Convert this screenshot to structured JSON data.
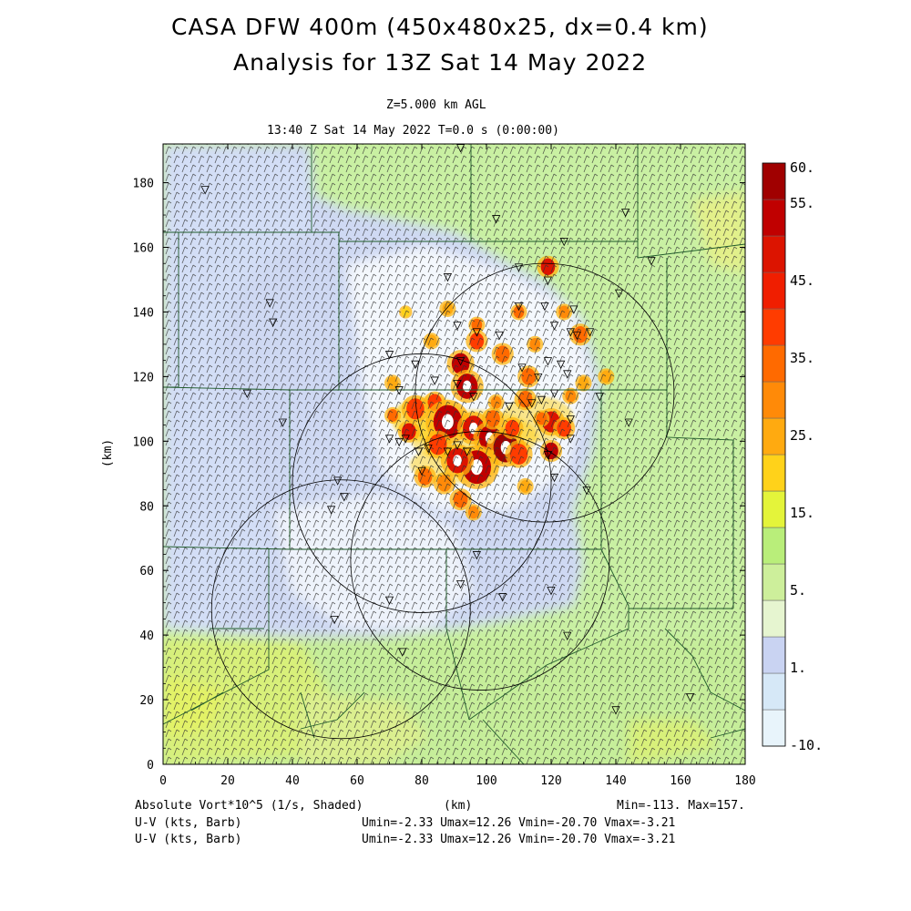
{
  "header": {
    "title_line1": "CASA DFW 400m (450x480x25, dx=0.4 km)",
    "title_line2": "Analysis for 13Z Sat 14 May 2022",
    "level": "Z=5.000 km AGL",
    "valid_time": "13:40 Z Sat 14 May 2022   T=0.0 s (0:00:00)"
  },
  "footer": {
    "field": "Absolute Vort*10^5 (1/s, Shaded)",
    "x_unit": "(km)",
    "minmax": "Min=-113. Max=157.",
    "wind1_label": "U-V (kts, Barb)",
    "wind1_stats": "Umin=-2.33 Umax=12.26 Vmin=-20.70 Vmax=-3.21",
    "wind2_label": "U-V (kts, Barb)",
    "wind2_stats": "Umin=-2.33 Umax=12.26 Vmin=-20.70 Vmax=-3.21"
  },
  "chart_data": {
    "type": "heatmap",
    "title": "CASA DFW 400m (450x480x25, dx=0.4 km)",
    "xlabel": "(km)",
    "ylabel": "(km)",
    "xlim": [
      0,
      180
    ],
    "ylim": [
      0,
      192
    ],
    "x_ticks": [
      0,
      20,
      40,
      60,
      80,
      100,
      120,
      140,
      160,
      180
    ],
    "y_ticks": [
      0,
      20,
      40,
      60,
      80,
      100,
      120,
      140,
      160,
      180
    ],
    "colorbar": {
      "labels": [
        "60.",
        "55.",
        "45.",
        "35.",
        "25.",
        "15.",
        "5.",
        "1.",
        "-10."
      ],
      "levels": [
        -10,
        1,
        5,
        15,
        25,
        35,
        45,
        55,
        60
      ],
      "colors": [
        "#e8f4fb",
        "#d6e8f7",
        "#c9d3f2",
        "#e6f5d0",
        "#cdef9b",
        "#b9ee7a",
        "#e4f43a",
        "#ffd21a",
        "#ffaa10",
        "#ff8a08",
        "#ff6a00",
        "#ff3c00",
        "#f01e00",
        "#dc1400",
        "#c00000",
        "#a00000"
      ]
    },
    "radar_rings": [
      {
        "center": [
          118,
          115
        ],
        "radius": 40
      },
      {
        "center": [
          80,
          87
        ],
        "radius": 40
      },
      {
        "center": [
          98,
          63
        ],
        "radius": 40
      },
      {
        "center": [
          55,
          48
        ],
        "radius": 40
      }
    ],
    "stations": [
      [
        13,
        178
      ],
      [
        92,
        191
      ],
      [
        103,
        169
      ],
      [
        124,
        162
      ],
      [
        143,
        171
      ],
      [
        151,
        156
      ],
      [
        88,
        151
      ],
      [
        110,
        154
      ],
      [
        119,
        150
      ],
      [
        141,
        146
      ],
      [
        33,
        143
      ],
      [
        34,
        137
      ],
      [
        110,
        142
      ],
      [
        118,
        142
      ],
      [
        127,
        141
      ],
      [
        121,
        136
      ],
      [
        126,
        134
      ],
      [
        128,
        133
      ],
      [
        132,
        134
      ],
      [
        91,
        136
      ],
      [
        104,
        133
      ],
      [
        97,
        134
      ],
      [
        70,
        127
      ],
      [
        78,
        124
      ],
      [
        92,
        125
      ],
      [
        119,
        125
      ],
      [
        111,
        123
      ],
      [
        123,
        124
      ],
      [
        116,
        120
      ],
      [
        125,
        121
      ],
      [
        84,
        119
      ],
      [
        91,
        118
      ],
      [
        26,
        115
      ],
      [
        73,
        116
      ],
      [
        117,
        113
      ],
      [
        121,
        115
      ],
      [
        135,
        114
      ],
      [
        96,
        114
      ],
      [
        114,
        112
      ],
      [
        107,
        111
      ],
      [
        126,
        107
      ],
      [
        144,
        106
      ],
      [
        37,
        106
      ],
      [
        70,
        101
      ],
      [
        126,
        101
      ],
      [
        75,
        101
      ],
      [
        82,
        98
      ],
      [
        79,
        97
      ],
      [
        91,
        99
      ],
      [
        94,
        97
      ],
      [
        88,
        97
      ],
      [
        119,
        96
      ],
      [
        73,
        100
      ],
      [
        121,
        89
      ],
      [
        54,
        88
      ],
      [
        56,
        83
      ],
      [
        52,
        79
      ],
      [
        131,
        85
      ],
      [
        80,
        91
      ],
      [
        97,
        65
      ],
      [
        92,
        56
      ],
      [
        105,
        52
      ],
      [
        120,
        54
      ],
      [
        70,
        51
      ],
      [
        53,
        45
      ],
      [
        125,
        40
      ],
      [
        74,
        35
      ],
      [
        140,
        17
      ],
      [
        163,
        21
      ]
    ]
  }
}
